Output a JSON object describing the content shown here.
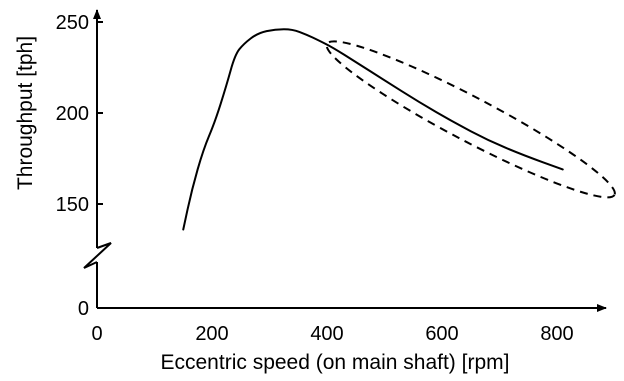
{
  "chart_data": {
    "type": "line",
    "title": "",
    "xlabel": "Eccentric speed (on main shaft) [rpm]",
    "ylabel": "Throughput [tph]",
    "xlim": [
      0,
      900
    ],
    "x_ticks": [
      {
        "value": 0,
        "label": "0"
      },
      {
        "value": 200,
        "label": "200"
      },
      {
        "value": 400,
        "label": "400"
      },
      {
        "value": 600,
        "label": "600"
      },
      {
        "value": 800,
        "label": "800"
      }
    ],
    "y_ticks": [
      {
        "value": 0,
        "label": "0"
      },
      {
        "value": 150,
        "label": "150"
      },
      {
        "value": 200,
        "label": "200"
      },
      {
        "value": 250,
        "label": "250"
      }
    ],
    "y_axis_broken": true,
    "grid": false,
    "series": [
      {
        "x": [
          150,
          165,
          185,
          205,
          225,
          240,
          255,
          280,
          310,
          340,
          365,
          385,
          410,
          450,
          500,
          560,
          620,
          680,
          740,
          810
        ],
        "y": [
          136,
          158,
          180,
          195,
          215,
          232,
          238,
          244,
          246,
          246,
          243,
          240,
          236,
          228,
          218,
          206,
          195,
          185,
          177,
          169
        ]
      }
    ],
    "annotations": [
      {
        "type": "dashed-ellipse",
        "x_range": [
          400,
          900
        ],
        "y_range": [
          155,
          238
        ]
      }
    ],
    "colors": {
      "line": "#000000",
      "axis": "#000000"
    }
  }
}
